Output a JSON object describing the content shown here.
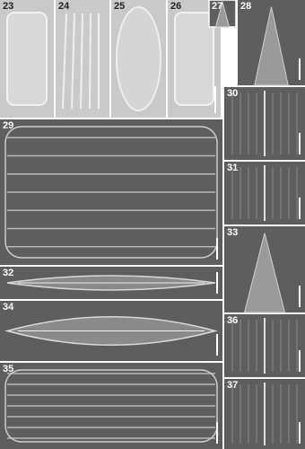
{
  "panels": [
    {
      "label": "23"
    },
    {
      "label": "24"
    },
    {
      "label": "25"
    },
    {
      "label": "26"
    },
    {
      "label": "27"
    },
    {
      "label": "28"
    },
    {
      "label": "29"
    },
    {
      "label": "30"
    },
    {
      "label": "31"
    },
    {
      "label": "32"
    },
    {
      "label": "33"
    },
    {
      "label": "34"
    },
    {
      "label": "35"
    },
    {
      "label": "36"
    },
    {
      "label": "37"
    }
  ]
}
